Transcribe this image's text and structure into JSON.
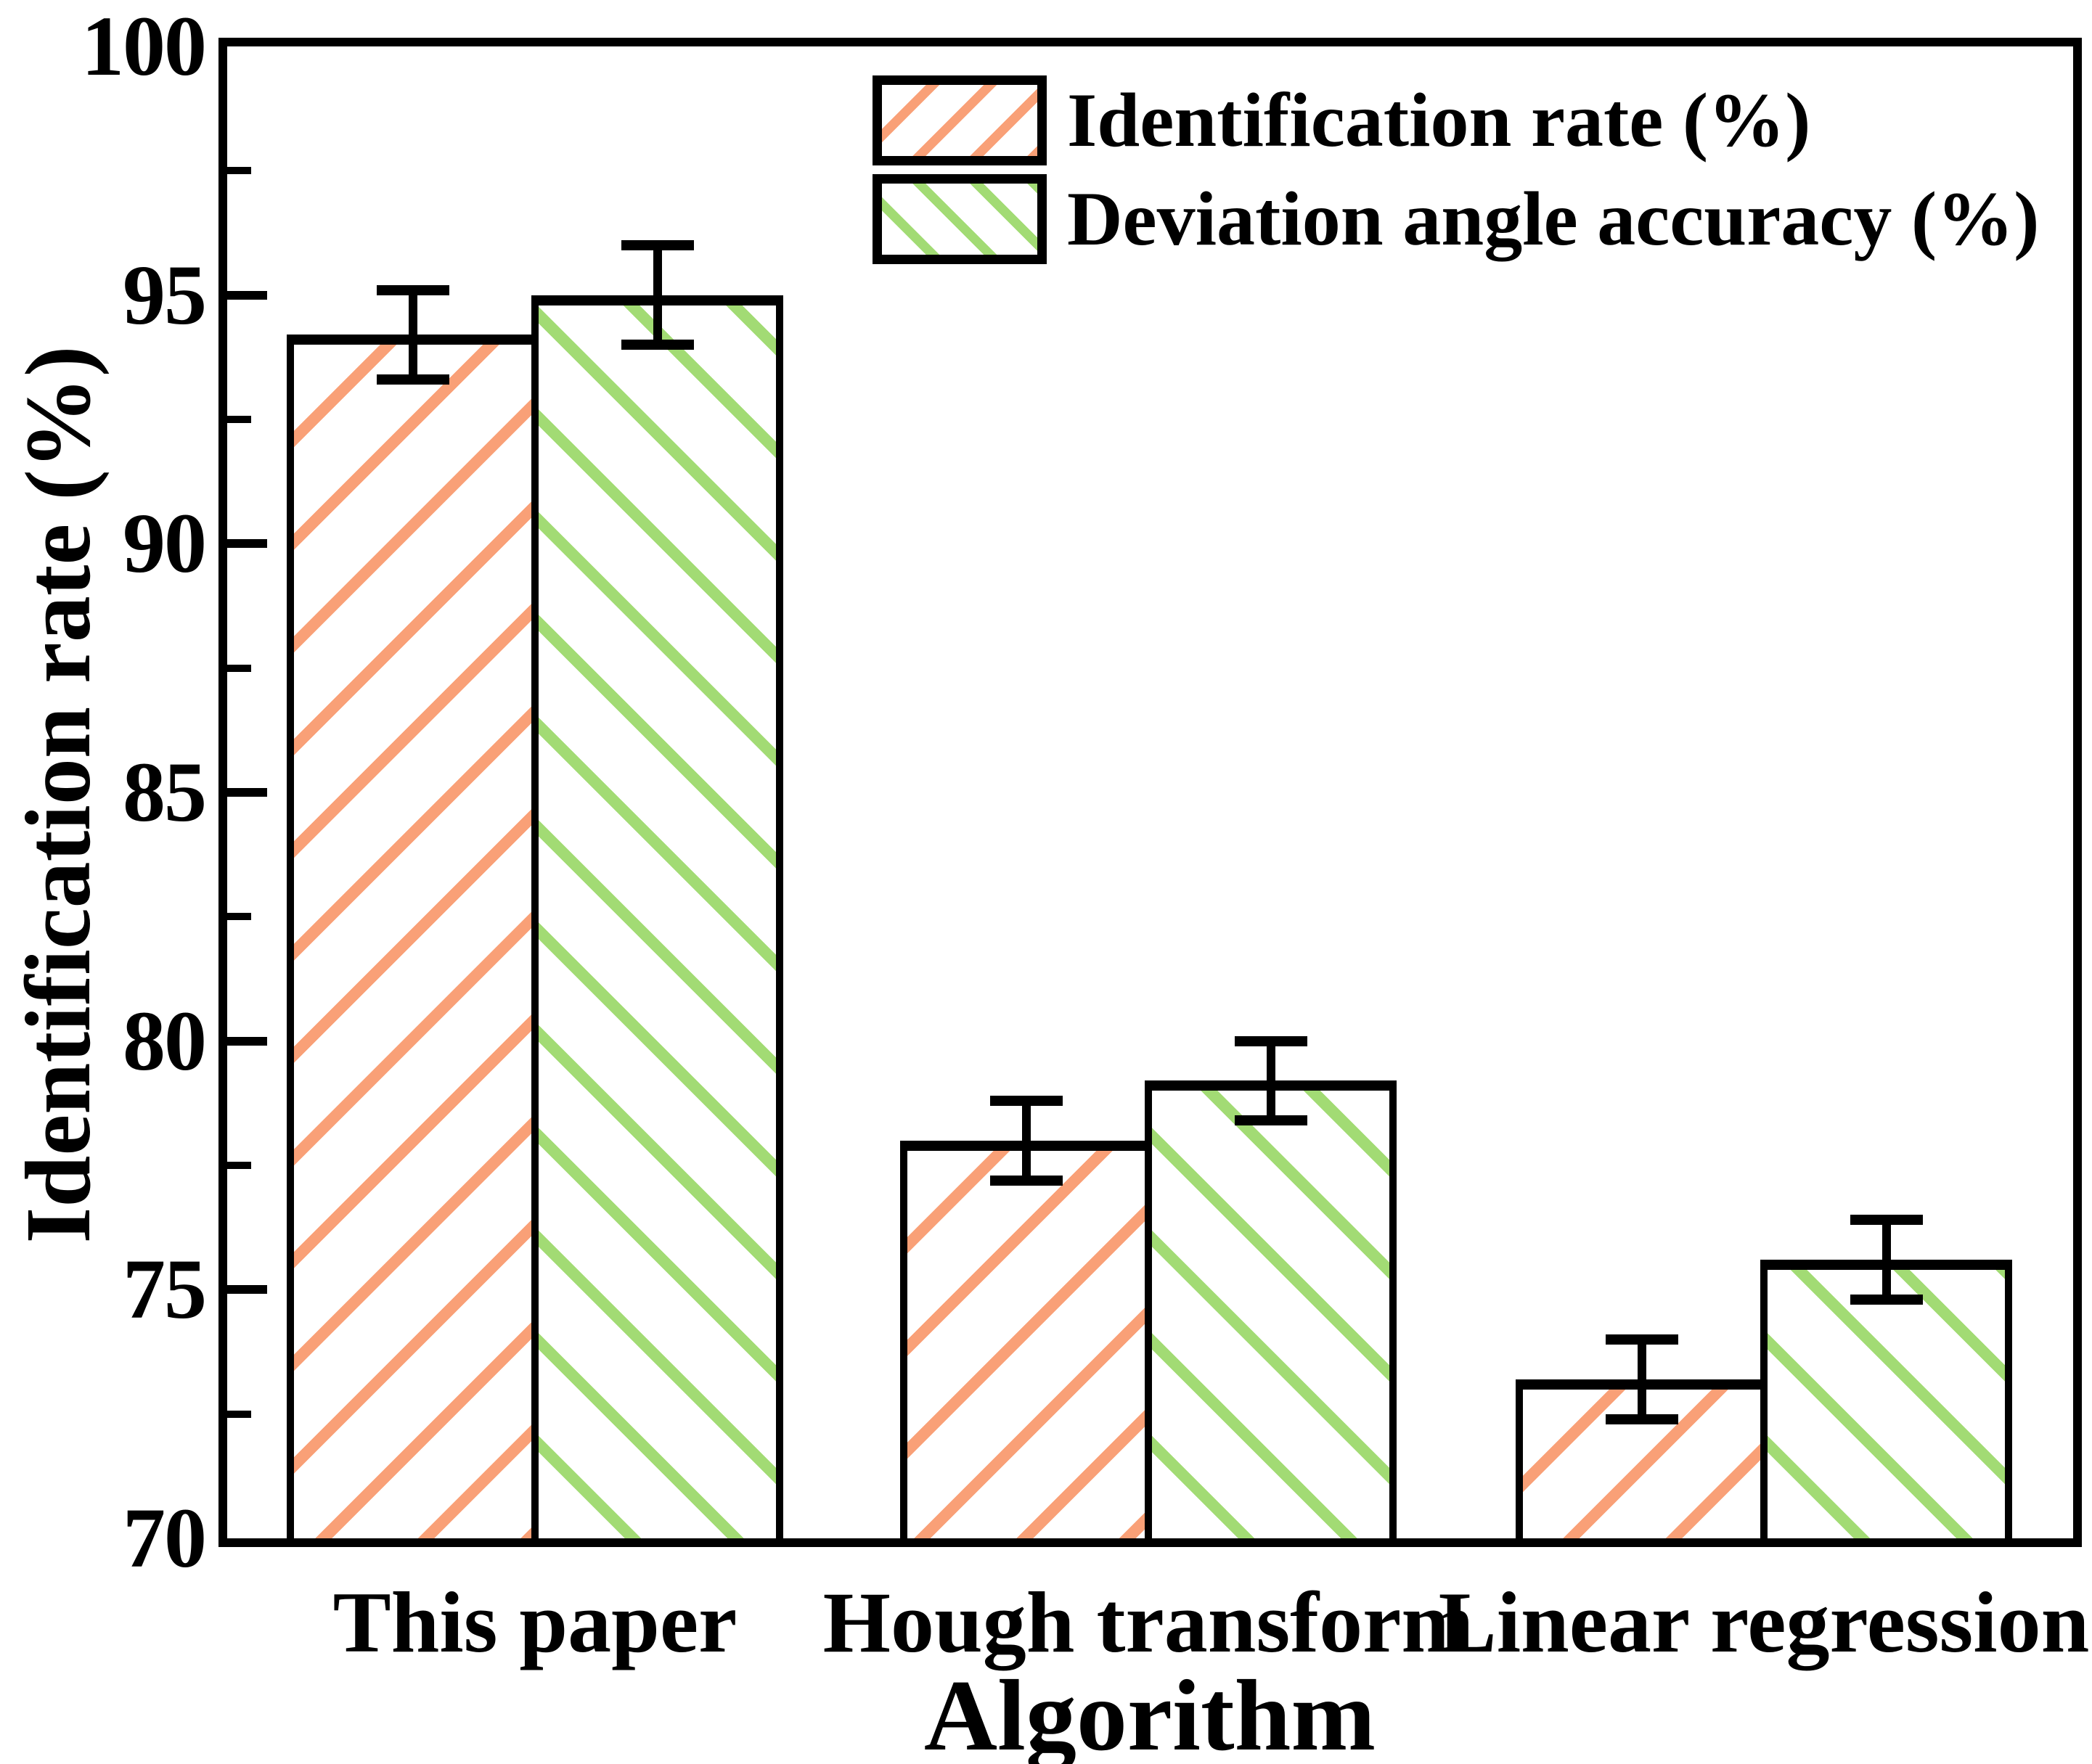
{
  "chart_data": {
    "type": "bar",
    "title": "",
    "categories": [
      "This paper",
      "Hough transform",
      "Linear regression"
    ],
    "series": [
      {
        "name": "Identification rate (%)",
        "color": "#F9A077",
        "hatch": "/",
        "values": [
          94.2,
          78.0,
          73.2
        ],
        "errors": [
          0.9,
          0.8,
          0.8
        ]
      },
      {
        "name": "Deviation angle accuracy (%)",
        "color": "#A2DB74",
        "hatch": "\\",
        "values": [
          95.0,
          79.2,
          75.6
        ],
        "errors": [
          1.0,
          0.8,
          0.8
        ]
      }
    ],
    "xlabel": "Algorithm",
    "ylabel": "Identification rate (%)",
    "ylim": [
      70,
      100
    ],
    "ytick_major_step": 5,
    "ytick_minor_step": 2.5,
    "ytick_labels": [
      "100",
      "95",
      "90",
      "85",
      "80",
      "75",
      "70"
    ],
    "grid": false,
    "legend_position": "upper-center-inside",
    "bar_edge_color": "#000000",
    "error_bar_color": "#000000",
    "background_color": "#ffffff"
  }
}
